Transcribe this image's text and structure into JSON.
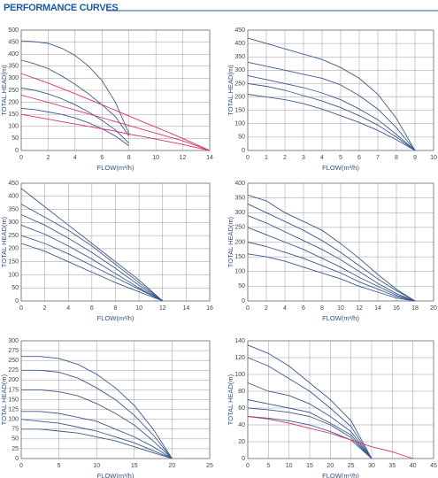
{
  "header": {
    "title": "PERFORMANCE CURVES"
  },
  "chart_data": [
    {
      "type": "line",
      "xlabel": "FLOW(m³/h)",
      "ylabel": "TOTAL HEAD(m)",
      "x": [
        0,
        1,
        2,
        3,
        4,
        5,
        6,
        7,
        8,
        9,
        10,
        11,
        12,
        13,
        14
      ],
      "xlim": [
        0,
        14
      ],
      "xticks": [
        0,
        2,
        4,
        6,
        8,
        10,
        12,
        14
      ],
      "ylim": [
        0,
        500
      ],
      "yticks": [
        0,
        50,
        100,
        150,
        200,
        250,
        300,
        350,
        400,
        450,
        500
      ],
      "grid": true,
      "series": [
        {
          "color": "#3a5a8c",
          "values": [
            455,
            452,
            445,
            425,
            395,
            350,
            290,
            200,
            70,
            null,
            null,
            null,
            null,
            null,
            null
          ]
        },
        {
          "color": "#3a5a8c",
          "values": [
            375,
            360,
            340,
            310,
            275,
            235,
            190,
            140,
            60,
            null,
            null,
            null,
            null,
            null,
            null
          ]
        },
        {
          "color": "#3a5a8c",
          "values": [
            260,
            250,
            235,
            215,
            190,
            160,
            125,
            85,
            30,
            null,
            null,
            null,
            null,
            null,
            null
          ]
        },
        {
          "color": "#3a5a8c",
          "values": [
            175,
            170,
            160,
            150,
            135,
            115,
            90,
            60,
            20,
            null,
            null,
            null,
            null,
            null,
            null
          ]
        },
        {
          "color": "#d6336c",
          "values": [
            320,
            300,
            280,
            258,
            236,
            213,
            190,
            167,
            143,
            120,
            97,
            74,
            50,
            25,
            0
          ]
        },
        {
          "color": "#d6336c",
          "values": [
            230,
            215,
            200,
            184,
            168,
            152,
            136,
            120,
            104,
            88,
            72,
            56,
            40,
            20,
            0
          ]
        },
        {
          "color": "#d6336c",
          "values": [
            150,
            140,
            130,
            120,
            110,
            100,
            90,
            80,
            68,
            58,
            47,
            36,
            25,
            12,
            0
          ]
        }
      ]
    },
    {
      "type": "line",
      "xlabel": "FLOW(m³/h)",
      "ylabel": "TOTAL HEAD(m)",
      "x": [
        0,
        1,
        2,
        3,
        4,
        5,
        6,
        7,
        8,
        9
      ],
      "xlim": [
        0,
        10
      ],
      "xticks": [
        0,
        1,
        2,
        3,
        4,
        5,
        6,
        7,
        8,
        9,
        10
      ],
      "ylim": [
        0,
        450
      ],
      "yticks": [
        0,
        50,
        100,
        150,
        200,
        250,
        300,
        350,
        400,
        450
      ],
      "grid": true,
      "series": [
        {
          "color": "#3a5a8c",
          "values": [
            420,
            400,
            380,
            360,
            340,
            310,
            270,
            210,
            120,
            0
          ]
        },
        {
          "color": "#3a5a8c",
          "values": [
            330,
            315,
            300,
            285,
            270,
            245,
            205,
            155,
            85,
            0
          ]
        },
        {
          "color": "#3a5a8c",
          "values": [
            280,
            265,
            250,
            235,
            215,
            190,
            155,
            115,
            60,
            0
          ]
        },
        {
          "color": "#3a5a8c",
          "values": [
            250,
            240,
            225,
            205,
            185,
            160,
            130,
            95,
            50,
            0
          ]
        },
        {
          "color": "#3a5a8c",
          "values": [
            210,
            200,
            190,
            175,
            155,
            130,
            105,
            75,
            40,
            0
          ]
        }
      ]
    },
    {
      "type": "line",
      "xlabel": "FLOW(m³/h)",
      "ylabel": "TOTAL HEAD(m)",
      "x": [
        0,
        2,
        4,
        6,
        8,
        10,
        12
      ],
      "xlim": [
        0,
        16
      ],
      "xticks": [
        0,
        2,
        4,
        6,
        8,
        10,
        12,
        14,
        16
      ],
      "ylim": [
        0,
        450
      ],
      "yticks": [
        0,
        50,
        100,
        150,
        200,
        250,
        300,
        350,
        400,
        450
      ],
      "grid": true,
      "series": [
        {
          "color": "#3a5a8c",
          "values": [
            430,
            360,
            290,
            220,
            150,
            80,
            0
          ]
        },
        {
          "color": "#3a5a8c",
          "values": [
            370,
            320,
            270,
            210,
            140,
            70,
            0
          ]
        },
        {
          "color": "#3a5a8c",
          "values": [
            330,
            290,
            240,
            185,
            125,
            60,
            0
          ]
        },
        {
          "color": "#3a5a8c",
          "values": [
            290,
            255,
            210,
            160,
            105,
            50,
            0
          ]
        },
        {
          "color": "#3a5a8c",
          "values": [
            250,
            220,
            180,
            135,
            90,
            45,
            0
          ]
        },
        {
          "color": "#3a5a8c",
          "values": [
            220,
            190,
            150,
            110,
            70,
            35,
            0
          ]
        }
      ]
    },
    {
      "type": "line",
      "xlabel": "FLOW(m³/h)",
      "ylabel": "TOTAL HEAD(m)",
      "x": [
        0,
        2,
        4,
        6,
        8,
        10,
        12,
        14,
        16,
        18
      ],
      "xlim": [
        0,
        20
      ],
      "xticks": [
        0,
        2,
        4,
        6,
        8,
        10,
        12,
        14,
        16,
        18,
        20
      ],
      "ylim": [
        0,
        400
      ],
      "yticks": [
        0,
        50,
        100,
        150,
        200,
        250,
        300,
        350,
        400
      ],
      "grid": true,
      "series": [
        {
          "color": "#3a5a8c",
          "values": [
            360,
            340,
            300,
            270,
            240,
            195,
            145,
            90,
            40,
            0
          ]
        },
        {
          "color": "#3a5a8c",
          "values": [
            330,
            300,
            270,
            240,
            205,
            165,
            120,
            75,
            35,
            0
          ]
        },
        {
          "color": "#3a5a8c",
          "values": [
            290,
            265,
            235,
            205,
            175,
            140,
            100,
            60,
            25,
            0
          ]
        },
        {
          "color": "#3a5a8c",
          "values": [
            250,
            225,
            200,
            175,
            145,
            115,
            80,
            50,
            20,
            0
          ]
        },
        {
          "color": "#3a5a8c",
          "values": [
            200,
            185,
            165,
            145,
            120,
            95,
            65,
            40,
            15,
            0
          ]
        },
        {
          "color": "#3a5a8c",
          "values": [
            160,
            150,
            135,
            115,
            95,
            75,
            50,
            30,
            10,
            0
          ]
        }
      ]
    },
    {
      "type": "line",
      "xlabel": "FLOW(m³/h)",
      "ylabel": "TOTAL HEAD(m)",
      "x": [
        0,
        2.5,
        5,
        7.5,
        10,
        12.5,
        15,
        17.5,
        20
      ],
      "xlim": [
        0,
        25
      ],
      "xticks": [
        0,
        5,
        10,
        15,
        20,
        25
      ],
      "ylim": [
        0,
        300
      ],
      "yticks": [
        0,
        25,
        50,
        75,
        100,
        125,
        150,
        175,
        200,
        225,
        250,
        275,
        300
      ],
      "grid": true,
      "series": [
        {
          "color": "#3a5a8c",
          "values": [
            260,
            260,
            255,
            240,
            215,
            180,
            135,
            75,
            0
          ]
        },
        {
          "color": "#3a5a8c",
          "values": [
            225,
            225,
            220,
            205,
            180,
            150,
            110,
            60,
            0
          ]
        },
        {
          "color": "#3a5a8c",
          "values": [
            175,
            175,
            170,
            160,
            140,
            115,
            85,
            45,
            0
          ]
        },
        {
          "color": "#3a5a8c",
          "values": [
            120,
            120,
            115,
            105,
            95,
            75,
            55,
            30,
            0
          ]
        },
        {
          "color": "#3a5a8c",
          "values": [
            100,
            95,
            90,
            80,
            70,
            55,
            40,
            20,
            0
          ]
        },
        {
          "color": "#3a5a8c",
          "values": [
            75,
            75,
            70,
            65,
            55,
            45,
            30,
            15,
            0
          ]
        }
      ]
    },
    {
      "type": "line",
      "xlabel": "FLOW(m³/h)",
      "ylabel": "TOTAL HEAD(m)",
      "x": [
        0,
        5,
        10,
        15,
        20,
        25,
        30,
        35,
        40
      ],
      "xlim": [
        0,
        45
      ],
      "xticks": [
        0,
        5,
        10,
        15,
        20,
        25,
        30,
        35,
        40,
        45
      ],
      "ylim": [
        0,
        140
      ],
      "yticks": [
        0,
        20,
        40,
        60,
        80,
        100,
        120,
        140
      ],
      "grid": true,
      "series": [
        {
          "color": "#3a5a8c",
          "values": [
            135,
            125,
            110,
            90,
            70,
            45,
            0,
            null,
            null
          ]
        },
        {
          "color": "#3a5a8c",
          "values": [
            120,
            110,
            95,
            80,
            60,
            38,
            0,
            null,
            null
          ]
        },
        {
          "color": "#3a5a8c",
          "values": [
            90,
            80,
            75,
            65,
            50,
            32,
            0,
            null,
            null
          ]
        },
        {
          "color": "#3a5a8c",
          "values": [
            70,
            65,
            60,
            55,
            42,
            28,
            0,
            null,
            null
          ]
        },
        {
          "color": "#3a5a8c",
          "values": [
            60,
            58,
            55,
            50,
            40,
            25,
            0,
            null,
            null
          ]
        },
        {
          "color": "#3a5a8c",
          "values": [
            50,
            48,
            45,
            40,
            32,
            22,
            0,
            null,
            null
          ]
        },
        {
          "color": "#d6336c",
          "values": [
            50,
            47,
            42,
            36,
            30,
            22,
            14,
            8,
            0
          ]
        }
      ]
    }
  ]
}
